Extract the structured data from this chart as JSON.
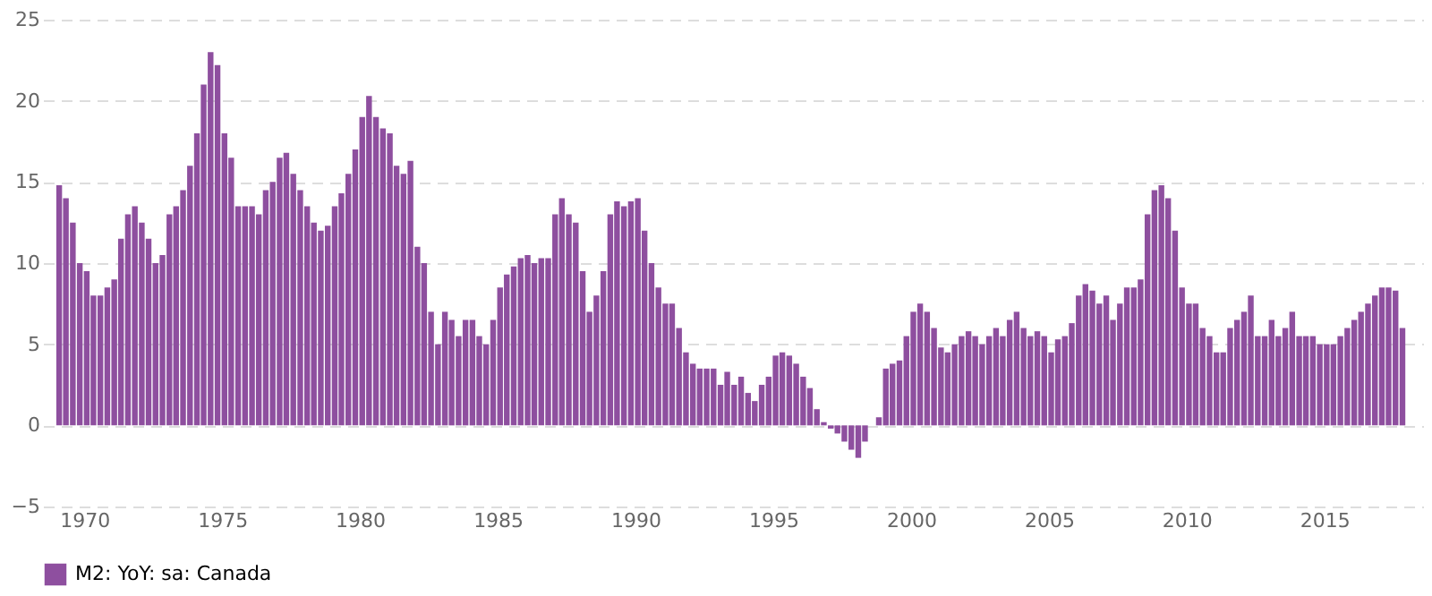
{
  "chart_data": {
    "type": "bar",
    "x": [
      "1969-02",
      "1969-05",
      "1969-08",
      "1969-11",
      "1970-02",
      "1970-05",
      "1970-08",
      "1970-11",
      "1971-02",
      "1971-05",
      "1971-08",
      "1971-11",
      "1972-02",
      "1972-05",
      "1972-08",
      "1972-11",
      "1973-02",
      "1973-05",
      "1973-08",
      "1973-11",
      "1974-02",
      "1974-05",
      "1974-08",
      "1974-11",
      "1975-02",
      "1975-05",
      "1975-08",
      "1975-11",
      "1976-02",
      "1976-05",
      "1976-08",
      "1976-11",
      "1977-02",
      "1977-05",
      "1977-08",
      "1977-11",
      "1978-02",
      "1978-05",
      "1978-08",
      "1978-11",
      "1979-02",
      "1979-05",
      "1979-08",
      "1979-11",
      "1980-02",
      "1980-05",
      "1980-08",
      "1980-11",
      "1981-02",
      "1981-05",
      "1981-08",
      "1981-11",
      "1982-02",
      "1982-05",
      "1982-08",
      "1982-11",
      "1983-02",
      "1983-05",
      "1983-08",
      "1983-11",
      "1984-02",
      "1984-05",
      "1984-08",
      "1984-11",
      "1985-02",
      "1985-05",
      "1985-08",
      "1985-11",
      "1986-02",
      "1986-05",
      "1986-08",
      "1986-11",
      "1987-02",
      "1987-05",
      "1987-08",
      "1987-11",
      "1988-02",
      "1988-05",
      "1988-08",
      "1988-11",
      "1989-02",
      "1989-05",
      "1989-08",
      "1989-11",
      "1990-02",
      "1990-05",
      "1990-08",
      "1990-11",
      "1991-02",
      "1991-05",
      "1991-08",
      "1991-11",
      "1992-02",
      "1992-05",
      "1992-08",
      "1992-11",
      "1993-02",
      "1993-05",
      "1993-08",
      "1993-11",
      "1994-02",
      "1994-05",
      "1994-08",
      "1994-11",
      "1995-02",
      "1995-05",
      "1995-08",
      "1995-11",
      "1996-02",
      "1996-05",
      "1996-08",
      "1996-11",
      "1997-02",
      "1997-05",
      "1997-08",
      "1997-11",
      "1998-02",
      "1998-05",
      "1998-08",
      "1998-11",
      "1999-02",
      "1999-05",
      "1999-08",
      "1999-11",
      "2000-02",
      "2000-05",
      "2000-08",
      "2000-11",
      "2001-02",
      "2001-05",
      "2001-08",
      "2001-11",
      "2002-02",
      "2002-05",
      "2002-08",
      "2002-11",
      "2003-02",
      "2003-05",
      "2003-08",
      "2003-11",
      "2004-02",
      "2004-05",
      "2004-08",
      "2004-11",
      "2005-02",
      "2005-05",
      "2005-08",
      "2005-11",
      "2006-02",
      "2006-05",
      "2006-08",
      "2006-11",
      "2007-02",
      "2007-05",
      "2007-08",
      "2007-11",
      "2008-02",
      "2008-05",
      "2008-08",
      "2008-11",
      "2009-02",
      "2009-05",
      "2009-08",
      "2009-11",
      "2010-02",
      "2010-05",
      "2010-08",
      "2010-11",
      "2011-02",
      "2011-05",
      "2011-08",
      "2011-11",
      "2012-02",
      "2012-05",
      "2012-08",
      "2012-11",
      "2013-02",
      "2013-05",
      "2013-08",
      "2013-11",
      "2014-02",
      "2014-05",
      "2014-08",
      "2014-11",
      "2015-02",
      "2015-05",
      "2015-08",
      "2015-11",
      "2016-02",
      "2016-05",
      "2016-08",
      "2016-11",
      "2017-02",
      "2017-05",
      "2017-08",
      "2017-11"
    ],
    "series": [
      {
        "name": "M2: YoY: sa: Canada",
        "color": "#8e4f9f",
        "values": [
          14.8,
          14,
          12.5,
          10,
          9.5,
          8,
          8,
          8.5,
          9,
          11.5,
          13,
          13.5,
          12.5,
          11.5,
          10,
          10.5,
          13,
          13.5,
          14.5,
          16,
          18,
          21,
          23,
          22.2,
          18,
          16.5,
          13.5,
          13.5,
          13.5,
          13,
          14.5,
          15,
          16.5,
          16.8,
          15.5,
          14.5,
          13.5,
          12.5,
          12,
          12.3,
          13.5,
          14.3,
          15.5,
          17,
          19,
          20.3,
          19,
          18.3,
          18,
          16,
          15.5,
          16.3,
          11,
          10,
          7,
          5,
          7,
          6.5,
          5.5,
          6.5,
          6.5,
          5.5,
          5,
          6.5,
          8.5,
          9.3,
          9.8,
          10.3,
          10.5,
          10,
          10.3,
          10.3,
          13,
          14,
          13,
          12.5,
          9.5,
          7,
          8,
          9.5,
          13,
          13.8,
          13.5,
          13.8,
          14,
          12,
          10,
          8.5,
          7.5,
          7.5,
          6,
          4.5,
          3.8,
          3.5,
          3.5,
          3.5,
          2.5,
          3.3,
          2.5,
          3,
          2,
          1.5,
          2.5,
          3,
          4.3,
          4.5,
          4.3,
          3.8,
          3,
          2.3,
          1,
          0.2,
          -0.2,
          -0.5,
          -1,
          -1.5,
          -2,
          -1,
          0,
          0.5,
          3.5,
          3.8,
          4,
          5.5,
          7,
          7.5,
          7,
          6,
          4.8,
          4.5,
          5,
          5.5,
          5.8,
          5.5,
          5,
          5.5,
          6,
          5.5,
          6.5,
          7,
          6,
          5.5,
          5.8,
          5.5,
          4.5,
          5.3,
          5.5,
          6.3,
          8,
          8.7,
          8.3,
          7.5,
          8,
          6.5,
          7.5,
          8.5,
          8.5,
          9,
          13,
          14.5,
          14.8,
          14,
          12,
          8.5,
          7.5,
          7.5,
          6,
          5.5,
          4.5,
          4.5,
          6,
          6.5,
          7,
          8,
          5.5,
          5.5,
          6.5,
          5.5,
          6,
          7,
          5.5,
          5.5,
          5.5,
          5,
          5,
          5,
          5.5,
          6,
          6.5,
          7,
          7.5,
          8,
          8.5,
          8.5,
          8.3,
          6
        ]
      }
    ],
    "xlim": [
      "1968-07",
      "2018-08"
    ],
    "xticks": [
      "1970",
      "1975",
      "1980",
      "1985",
      "1990",
      "1995",
      "2000",
      "2005",
      "2010",
      "2015"
    ],
    "ylim": [
      -5,
      25
    ],
    "yticks": [
      -5,
      0,
      5,
      10,
      15,
      20,
      25
    ],
    "grid": "y",
    "legend": "bottom"
  }
}
